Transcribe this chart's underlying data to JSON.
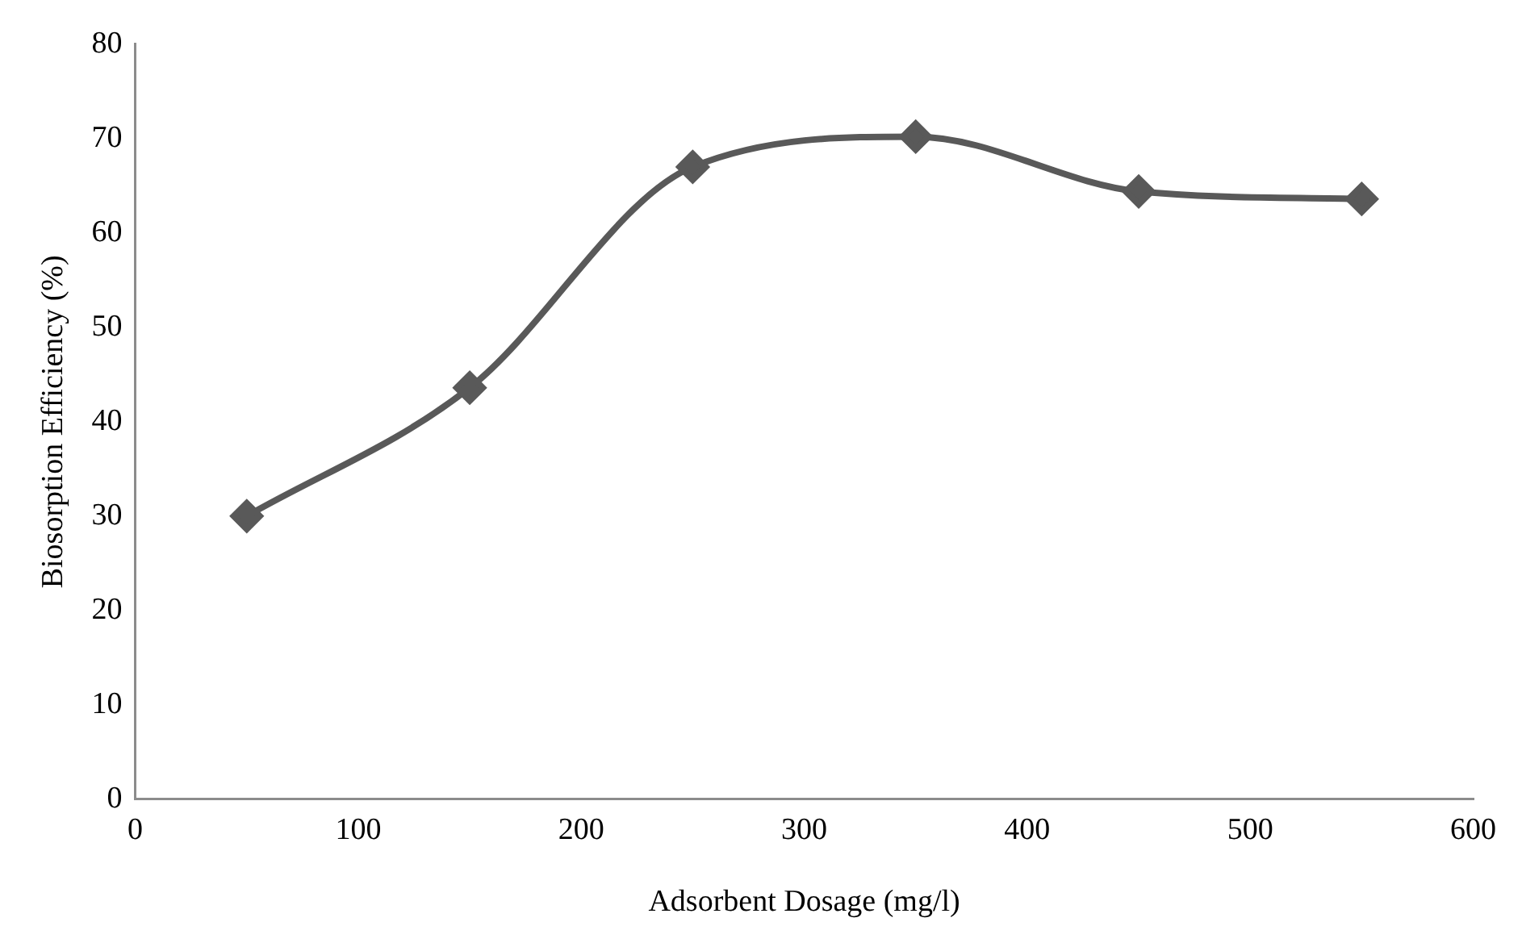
{
  "chart_data": {
    "type": "line",
    "xlabel": "Adsorbent Dosage (mg/l)",
    "ylabel": "Biosorption Efficiency (%)",
    "x": [
      50,
      150,
      250,
      350,
      450,
      550
    ],
    "series": [
      {
        "color": "#595959",
        "values": [
          30,
          43.6,
          67,
          70.2,
          64.4,
          63.6
        ]
      }
    ],
    "xlim": [
      0,
      600
    ],
    "xticks": [
      0,
      100,
      200,
      300,
      400,
      500,
      600
    ],
    "ylim": [
      0,
      80
    ],
    "yticks": [
      0,
      10,
      20,
      30,
      40,
      50,
      60,
      70,
      80
    ],
    "grid": false,
    "legend": false,
    "marker": "diamond",
    "line_style": "solid"
  }
}
